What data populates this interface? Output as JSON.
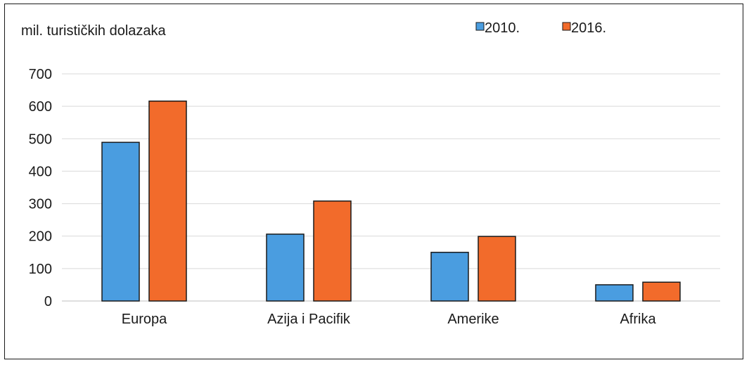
{
  "chart_data": {
    "type": "bar",
    "ylabel": "mil. turističkih dolazaka",
    "categories": [
      "Europa",
      "Azija i Pacifik",
      "Amerike",
      "Afrika"
    ],
    "series": [
      {
        "name": "2010.",
        "values": [
          489,
          206,
          150,
          50
        ],
        "color": "#4a9de0"
      },
      {
        "name": "2016.",
        "values": [
          616,
          308,
          199,
          58
        ],
        "color": "#f26b2b"
      }
    ],
    "ylim": [
      0,
      700
    ],
    "yticks": [
      0,
      100,
      200,
      300,
      400,
      500,
      600,
      700
    ],
    "grid": true,
    "legend_position": "top-right"
  }
}
